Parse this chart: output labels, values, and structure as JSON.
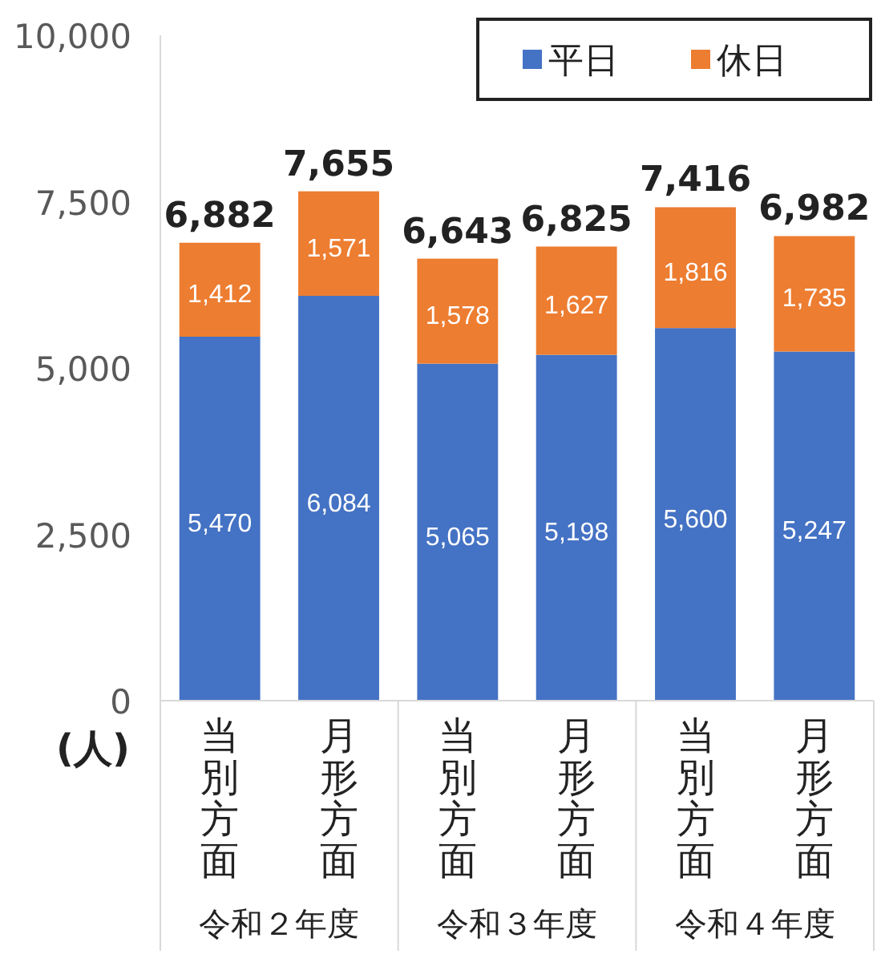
{
  "chart_data": {
    "type": "bar",
    "stacked": true,
    "ylabel": "(人)",
    "categories": [
      "当別方面",
      "月形方面",
      "当別方面",
      "月形方面",
      "当別方面",
      "月形方面"
    ],
    "series": [
      {
        "name": "平日",
        "color": "#4472c4",
        "values": [
          5470,
          6084,
          5065,
          5198,
          5600,
          5247
        ],
        "value_labels": [
          "5,470",
          "6,084",
          "5,065",
          "5,198",
          "5,600",
          "5,247"
        ]
      },
      {
        "name": "休日",
        "color": "#ed7d31",
        "values": [
          1412,
          1571,
          1578,
          1627,
          1816,
          1735
        ],
        "value_labels": [
          "1,412",
          "1,571",
          "1,578",
          "1,627",
          "1,816",
          "1,735"
        ]
      }
    ],
    "totals": [
      "6,882",
      "7,655",
      "6,643",
      "6,825",
      "7,416",
      "6,982"
    ],
    "ylim": [
      0,
      10000
    ],
    "yticks": [
      {
        "value": 0,
        "label": "0"
      },
      {
        "value": 2500,
        "label": "2,500"
      },
      {
        "value": 5000,
        "label": "5,000"
      },
      {
        "value": 7500,
        "label": "7,500"
      },
      {
        "value": 10000,
        "label": "10,000"
      }
    ],
    "grid": false,
    "legend": "top right",
    "annotations": [
      "令和２年度",
      "令和３年度",
      "令和４年度"
    ]
  }
}
